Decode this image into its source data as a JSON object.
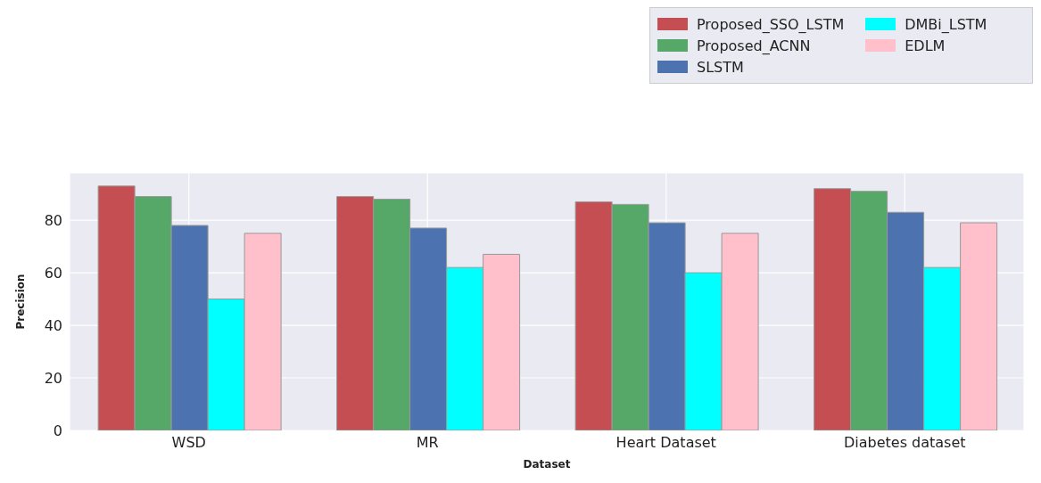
{
  "chart_data": {
    "type": "bar",
    "xlabel": "Dataset",
    "ylabel": "Precision",
    "categories": [
      "WSD",
      "MR",
      "Heart Dataset",
      "Diabetes dataset"
    ],
    "series": [
      {
        "name": "Proposed_SSO_LSTM",
        "color": "#c44e52",
        "values": [
          93,
          89,
          87,
          92
        ]
      },
      {
        "name": "Proposed_ACNN",
        "color": "#55a868",
        "values": [
          89,
          88,
          86,
          91
        ]
      },
      {
        "name": "SLSTM",
        "color": "#4c72b0",
        "values": [
          78,
          77,
          79,
          83
        ]
      },
      {
        "name": "DMBi_LSTM",
        "color": "#00ffff",
        "values": [
          50,
          62,
          60,
          62
        ]
      },
      {
        "name": "EDLM",
        "color": "#ffc0cb",
        "values": [
          75,
          67,
          75,
          79
        ]
      }
    ],
    "ylim": [
      0,
      98
    ],
    "yticks": [
      0,
      20,
      40,
      60,
      80
    ],
    "grid": true,
    "legend": "top right"
  }
}
